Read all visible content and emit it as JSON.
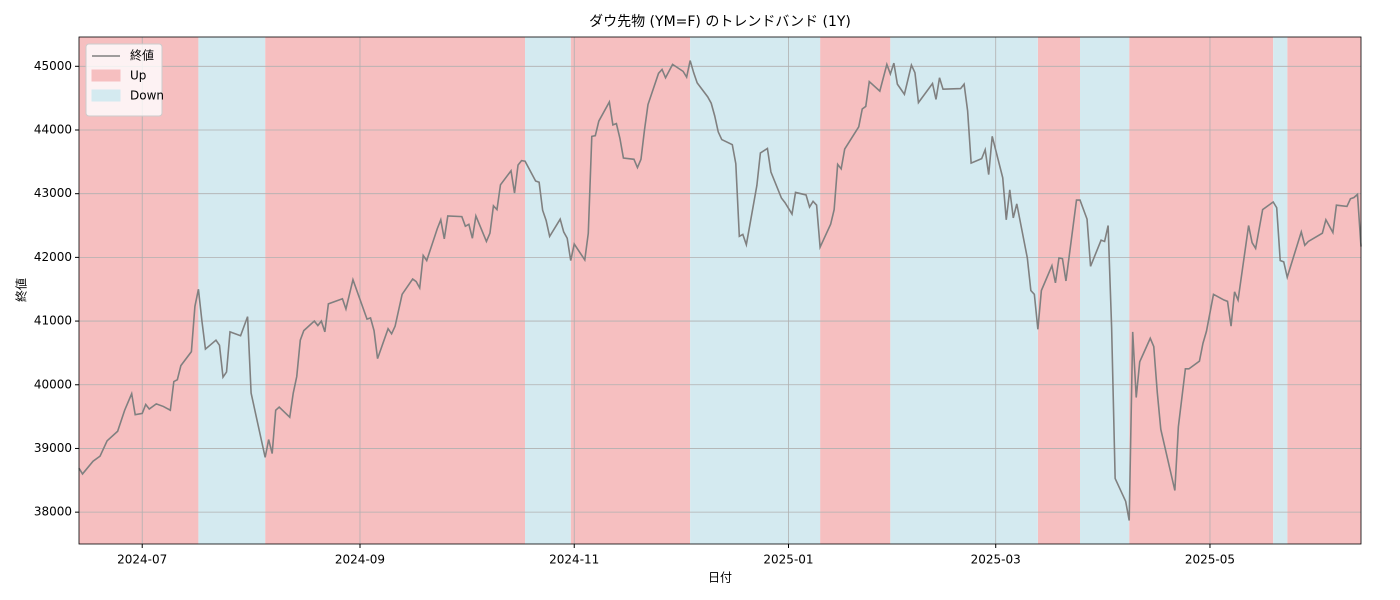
{
  "chart_data": {
    "type": "line",
    "title": "ダウ先物 (YM=F) のトレンドバンド (1Y)",
    "xlabel": "日付",
    "ylabel": "終値",
    "x": [
      "2024-06-13",
      "2024-06-14",
      "2024-06-17",
      "2024-06-19",
      "2024-06-21",
      "2024-06-24",
      "2024-06-26",
      "2024-06-28",
      "2024-06-29",
      "2024-07-01",
      "2024-07-02",
      "2024-07-03",
      "2024-07-05",
      "2024-07-07",
      "2024-07-09",
      "2024-07-10",
      "2024-07-11",
      "2024-07-12",
      "2024-07-15",
      "2024-07-16",
      "2024-07-17",
      "2024-07-18",
      "2024-07-19",
      "2024-07-22",
      "2024-07-23",
      "2024-07-24",
      "2024-07-25",
      "2024-07-26",
      "2024-07-29",
      "2024-07-31",
      "2024-08-01",
      "2024-08-05",
      "2024-08-06",
      "2024-08-07",
      "2024-08-08",
      "2024-08-09",
      "2024-08-12",
      "2024-08-13",
      "2024-08-14",
      "2024-08-15",
      "2024-08-16",
      "2024-08-19",
      "2024-08-20",
      "2024-08-21",
      "2024-08-22",
      "2024-08-23",
      "2024-08-27",
      "2024-08-28",
      "2024-08-30",
      "2024-09-03",
      "2024-09-04",
      "2024-09-05",
      "2024-09-06",
      "2024-09-09",
      "2024-09-10",
      "2024-09-11",
      "2024-09-13",
      "2024-09-16",
      "2024-09-17",
      "2024-09-18",
      "2024-09-19",
      "2024-09-20",
      "2024-09-23",
      "2024-09-24",
      "2024-09-25",
      "2024-09-26",
      "2024-09-30",
      "2024-10-01",
      "2024-10-02",
      "2024-10-03",
      "2024-10-04",
      "2024-10-07",
      "2024-10-08",
      "2024-10-09",
      "2024-10-10",
      "2024-10-11",
      "2024-10-14",
      "2024-10-15",
      "2024-10-16",
      "2024-10-17",
      "2024-10-18",
      "2024-10-21",
      "2024-10-22",
      "2024-10-23",
      "2024-10-24",
      "2024-10-25",
      "2024-10-28",
      "2024-10-29",
      "2024-10-30",
      "2024-10-31",
      "2024-11-01",
      "2024-11-04",
      "2024-11-05",
      "2024-11-06",
      "2024-11-07",
      "2024-11-08",
      "2024-11-11",
      "2024-11-12",
      "2024-11-13",
      "2024-11-14",
      "2024-11-15",
      "2024-11-18",
      "2024-11-19",
      "2024-11-20",
      "2024-11-21",
      "2024-11-22",
      "2024-11-25",
      "2024-11-26",
      "2024-11-27",
      "2024-11-29",
      "2024-12-02",
      "2024-12-03",
      "2024-12-04",
      "2024-12-05",
      "2024-12-06",
      "2024-12-09",
      "2024-12-10",
      "2024-12-11",
      "2024-12-12",
      "2024-12-13",
      "2024-12-16",
      "2024-12-17",
      "2024-12-18",
      "2024-12-19",
      "2024-12-20",
      "2024-12-23",
      "2024-12-24",
      "2024-12-26",
      "2024-12-27",
      "2024-12-30",
      "2024-12-31",
      "2025-01-02",
      "2025-01-03",
      "2025-01-06",
      "2025-01-07",
      "2025-01-08",
      "2025-01-09",
      "2025-01-10",
      "2025-01-13",
      "2025-01-14",
      "2025-01-15",
      "2025-01-16",
      "2025-01-17",
      "2025-01-21",
      "2025-01-22",
      "2025-01-23",
      "2025-01-24",
      "2025-01-27",
      "2025-01-29",
      "2025-01-30",
      "2025-01-31",
      "2025-02-01",
      "2025-02-03",
      "2025-02-05",
      "2025-02-06",
      "2025-02-07",
      "2025-02-11",
      "2025-02-12",
      "2025-02-13",
      "2025-02-14",
      "2025-02-19",
      "2025-02-20",
      "2025-02-21",
      "2025-02-22",
      "2025-02-25",
      "2025-02-26",
      "2025-02-27",
      "2025-02-28",
      "2025-03-03",
      "2025-03-04",
      "2025-03-05",
      "2025-03-06",
      "2025-03-07",
      "2025-03-10",
      "2025-03-11",
      "2025-03-12",
      "2025-03-13",
      "2025-03-14",
      "2025-03-17",
      "2025-03-18",
      "2025-03-19",
      "2025-03-20",
      "2025-03-21",
      "2025-03-24",
      "2025-03-25",
      "2025-03-27",
      "2025-03-28",
      "2025-03-31",
      "2025-04-01",
      "2025-04-02",
      "2025-04-03",
      "2025-04-04",
      "2025-04-07",
      "2025-04-08",
      "2025-04-09",
      "2025-04-10",
      "2025-04-11",
      "2025-04-14",
      "2025-04-15",
      "2025-04-16",
      "2025-04-17",
      "2025-04-21",
      "2025-04-22",
      "2025-04-24",
      "2025-04-25",
      "2025-04-28",
      "2025-04-29",
      "2025-04-30",
      "2025-05-02",
      "2025-05-05",
      "2025-05-06",
      "2025-05-07",
      "2025-05-08",
      "2025-05-09",
      "2025-05-12",
      "2025-05-13",
      "2025-05-14",
      "2025-05-16",
      "2025-05-19",
      "2025-05-20",
      "2025-05-21",
      "2025-05-22",
      "2025-05-23",
      "2025-05-27",
      "2025-05-28",
      "2025-05-29",
      "2025-06-02",
      "2025-06-03",
      "2025-06-05",
      "2025-06-06",
      "2025-06-09",
      "2025-06-10",
      "2025-06-11",
      "2025-06-12",
      "2025-06-13"
    ],
    "series": [
      {
        "name": "終値",
        "color": "#808080",
        "values": [
          38690,
          38600,
          38800,
          38880,
          39120,
          39270,
          39600,
          39860,
          39530,
          39550,
          39690,
          39620,
          39700,
          39660,
          39600,
          40050,
          40080,
          40300,
          40520,
          41230,
          41500,
          41000,
          40560,
          40700,
          40620,
          40120,
          40200,
          40830,
          40770,
          41070,
          39870,
          38860,
          39140,
          38920,
          39600,
          39650,
          39490,
          39870,
          40130,
          40700,
          40850,
          41000,
          40930,
          41000,
          40830,
          41270,
          41350,
          41190,
          41650,
          41030,
          41050,
          40850,
          40410,
          40880,
          40800,
          40920,
          41420,
          41660,
          41620,
          41520,
          42030,
          41950,
          42450,
          42590,
          42290,
          42650,
          42640,
          42490,
          42520,
          42300,
          42650,
          42250,
          42380,
          42810,
          42750,
          43140,
          43360,
          43010,
          43450,
          43520,
          43510,
          43200,
          43180,
          42740,
          42580,
          42330,
          42600,
          42400,
          42300,
          41950,
          42210,
          41960,
          42380,
          43900,
          43910,
          44140,
          44440,
          44080,
          44100,
          43870,
          43560,
          43540,
          43410,
          43540,
          44000,
          44400,
          44890,
          44950,
          44820,
          45030,
          44920,
          44830,
          45090,
          44900,
          44740,
          44520,
          44420,
          44220,
          43970,
          43850,
          43770,
          43470,
          42330,
          42360,
          42200,
          43130,
          43640,
          43710,
          43340,
          42930,
          42860,
          42680,
          43020,
          42980,
          42790,
          42880,
          42820,
          42160,
          42520,
          42750,
          43460,
          43390,
          43700,
          44050,
          44330,
          44370,
          44760,
          44610,
          45030,
          44880,
          45050,
          44720,
          44560,
          45020,
          44900,
          44430,
          44730,
          44480,
          44820,
          44640,
          44650,
          44720,
          44300,
          43480,
          43550,
          43690,
          43300,
          43900,
          43250,
          42590,
          43060,
          42620,
          42840,
          41990,
          41480,
          41420,
          40870,
          41480,
          41870,
          41600,
          41990,
          41980,
          41630,
          42900,
          42900,
          42600,
          41860,
          42270,
          42250,
          42500,
          40900,
          38530,
          38170,
          37870,
          40830,
          39800,
          40360,
          40730,
          40600,
          39880,
          39300,
          38340,
          39340,
          40250,
          40250,
          40370,
          40650,
          40840,
          41420,
          41330,
          41310,
          40920,
          41460,
          41330,
          42500,
          42230,
          42140,
          42750,
          42870,
          42780,
          41950,
          41930,
          41690,
          42400,
          42190,
          42250,
          42380,
          42590,
          42390,
          42820,
          42800,
          42920,
          42940,
          42990,
          42170
        ]
      }
    ],
    "bands": [
      {
        "name": "Up",
        "color": "#f6bfc0",
        "ranges": [
          [
            "2024-06-13",
            "2024-07-17"
          ],
          [
            "2024-08-05",
            "2024-10-18"
          ],
          [
            "2024-10-31",
            "2024-12-04"
          ],
          [
            "2025-01-10",
            "2025-01-30"
          ],
          [
            "2025-03-13",
            "2025-03-25"
          ],
          [
            "2025-04-08",
            "2025-05-19"
          ],
          [
            "2025-05-23",
            "2025-06-13"
          ]
        ]
      },
      {
        "name": "Down",
        "color": "#d4eaf0",
        "ranges": [
          [
            "2024-07-17",
            "2024-08-05"
          ],
          [
            "2024-10-18",
            "2024-10-31"
          ],
          [
            "2024-12-04",
            "2025-01-10"
          ],
          [
            "2025-01-30",
            "2025-03-13"
          ],
          [
            "2025-03-25",
            "2025-04-08"
          ],
          [
            "2025-05-19",
            "2025-05-23"
          ]
        ]
      }
    ],
    "xlim": [
      "2024-06-13",
      "2025-06-13"
    ],
    "ylim": [
      37500,
      45460
    ],
    "xticks": [
      {
        "value": "2024-07-01",
        "label": "2024-07"
      },
      {
        "value": "2024-09-01",
        "label": "2024-09"
      },
      {
        "value": "2024-11-01",
        "label": "2024-11"
      },
      {
        "value": "2025-01-01",
        "label": "2025-01"
      },
      {
        "value": "2025-03-01",
        "label": "2025-03"
      },
      {
        "value": "2025-05-01",
        "label": "2025-05"
      }
    ],
    "yticks": [
      38000,
      39000,
      40000,
      41000,
      42000,
      43000,
      44000,
      45000
    ],
    "grid": true,
    "legend": "upper left"
  }
}
